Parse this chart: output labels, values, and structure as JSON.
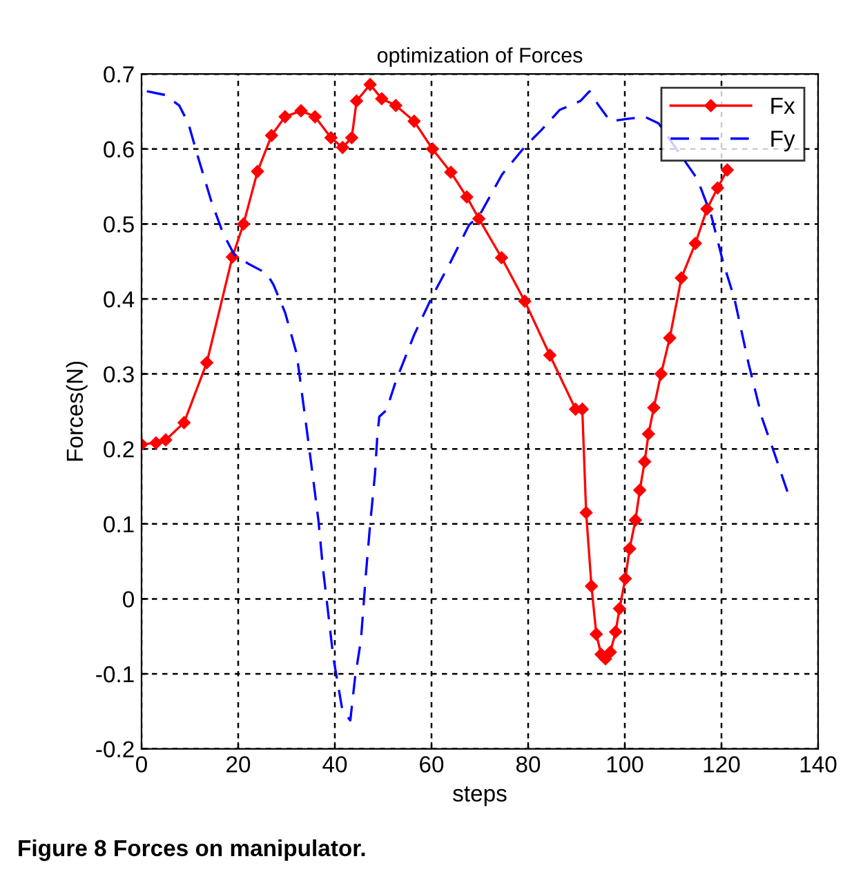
{
  "chart_data": {
    "type": "line",
    "title": "optimization of Forces",
    "xlabel": "steps",
    "ylabel": "Forces(N)",
    "annotations": [
      "Figure 8 Forces on manipulator."
    ],
    "xlim": [
      0,
      140
    ],
    "xticks": [
      0,
      20,
      40,
      60,
      80,
      100,
      120,
      140
    ],
    "ylim": [
      -0.2,
      0.7
    ],
    "yticks": [
      -0.2,
      -0.1,
      0,
      0.1,
      0.2,
      0.3,
      0.4,
      0.5,
      0.6,
      0.7
    ],
    "grid": true,
    "legend": "top right",
    "series": [
      {
        "name": "Fx",
        "color": "#ff0000",
        "marker": "diamond",
        "line_style": "solid",
        "x": [
          0,
          3,
          5,
          8.8,
          13.5,
          18.8,
          21.1,
          24,
          26.9,
          29.7,
          33,
          35.9,
          39.2,
          41.6,
          43.5,
          44.5,
          47.3,
          49.7,
          52.6,
          56.4,
          60.2,
          64,
          67.3,
          69.8,
          74.5,
          79.3,
          84.5,
          89.8,
          91.2,
          92,
          93.1,
          94.1,
          95.1,
          96,
          97,
          98.1,
          98.9,
          100.1,
          101,
          102.2,
          103.1,
          104.1,
          104.9,
          106,
          107.5,
          109.3,
          111.7,
          114.6,
          117,
          119.2,
          121.2
        ],
        "values": [
          0.206,
          0.208,
          0.212,
          0.235,
          0.315,
          0.456,
          0.5,
          0.57,
          0.618,
          0.643,
          0.651,
          0.643,
          0.615,
          0.602,
          0.615,
          0.664,
          0.686,
          0.667,
          0.658,
          0.637,
          0.6,
          0.569,
          0.536,
          0.507,
          0.455,
          0.397,
          0.325,
          0.253,
          0.253,
          0.115,
          0.017,
          -0.047,
          -0.074,
          -0.08,
          -0.071,
          -0.044,
          -0.013,
          0.027,
          0.067,
          0.105,
          0.145,
          0.183,
          0.22,
          0.255,
          0.3,
          0.348,
          0.428,
          0.474,
          0.52,
          0.548,
          0.572
        ]
      },
      {
        "name": "Fy",
        "color": "#0000ff",
        "marker": "none",
        "line_style": "dashed",
        "x": [
          1.1,
          4.9,
          7.8,
          9.7,
          11.6,
          14.5,
          16.9,
          19.2,
          22.1,
          25.9,
          27.3,
          29.7,
          32.1,
          34,
          35.4,
          36.6,
          37.5,
          38.5,
          39.7,
          40.7,
          41.6,
          43.2,
          44.2,
          45.4,
          46.4,
          47.3,
          48.3,
          48.8,
          49.2,
          50.7,
          52.6,
          56.4,
          60.2,
          64,
          67.8,
          69.8,
          74.6,
          79.3,
          82.7,
          86.5,
          90.8,
          92.7,
          94.6,
          97,
          100.3,
          104.1,
          107,
          115,
          117.9,
          120.3,
          122.7,
          125.6,
          128.4,
          130.8,
          133.7
        ],
        "values": [
          0.677,
          0.672,
          0.658,
          0.634,
          0.591,
          0.529,
          0.487,
          0.459,
          0.447,
          0.434,
          0.419,
          0.382,
          0.327,
          0.235,
          0.166,
          0.105,
          0.043,
          -0.012,
          -0.079,
          -0.116,
          -0.15,
          -0.162,
          -0.104,
          -0.055,
          0.031,
          0.099,
          0.166,
          0.218,
          0.243,
          0.252,
          0.29,
          0.352,
          0.404,
          0.45,
          0.499,
          0.51,
          0.566,
          0.603,
          0.625,
          0.652,
          0.664,
          0.677,
          0.658,
          0.637,
          0.64,
          0.643,
          0.634,
          0.56,
          0.511,
          0.45,
          0.4,
          0.314,
          0.241,
          0.197,
          0.142
        ]
      }
    ]
  }
}
